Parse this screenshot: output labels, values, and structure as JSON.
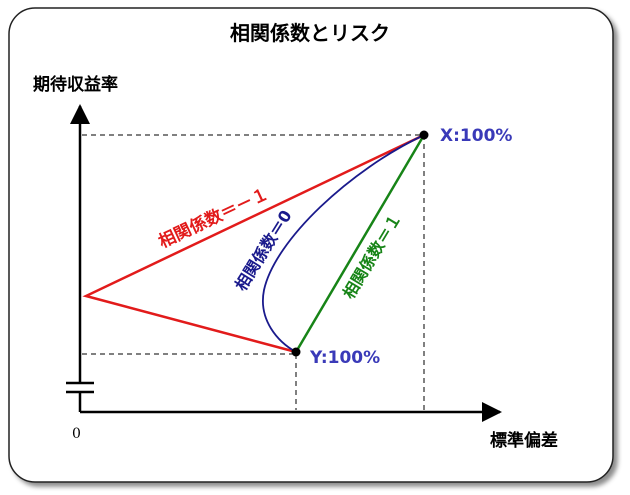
{
  "title": "相関係数とリスク",
  "y_axis_label": "期待収益率",
  "x_axis_label": "標準偏差",
  "origin_label": "0",
  "points": {
    "x": {
      "label": "X:100%"
    },
    "y": {
      "label": "Y:100%"
    }
  },
  "lines": {
    "neg": {
      "label": "相関係数＝－１",
      "color": "#e21b1b"
    },
    "zero": {
      "label": "相関係数＝0",
      "color": "#1a1a8c"
    },
    "pos": {
      "label": "相関係数＝１",
      "color": "#178417"
    }
  }
}
